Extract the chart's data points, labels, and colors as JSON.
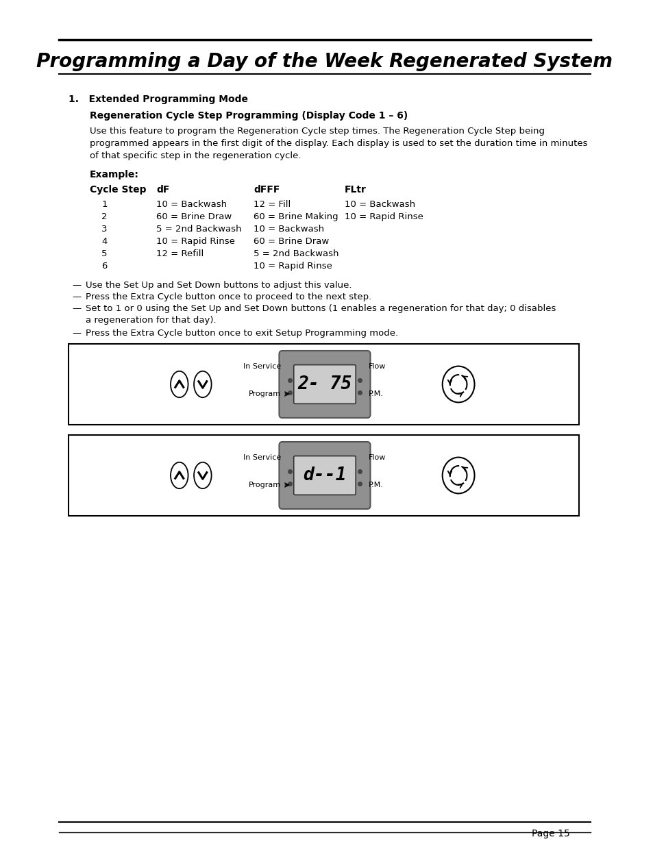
{
  "title": "Programming a Day of the Week Regenerated System",
  "bg_color": "#ffffff",
  "text_color": "#000000",
  "section1_heading": "1.   Extended Programming Mode",
  "subsection_heading": "Regeneration Cycle Step Programming (Display Code 1 – 6)",
  "intro_text": "Use this feature to program the Regeneration Cycle step times. The Regeneration Cycle Step being\nprogrammed appears in the first digit of the display. Each display is used to set the duration time in minutes\nof that specific step in the regeneration cycle.",
  "example_label": "Example:",
  "table_headers": [
    "Cycle Step",
    "dF",
    "dFFF",
    "FLtr"
  ],
  "table_col1": [
    "1",
    "2",
    "3",
    "4",
    "5",
    "6"
  ],
  "table_col2": [
    "10 = Backwash",
    "60 = Brine Draw",
    "5 = 2nd Backwash",
    "10 = Rapid Rinse",
    "12 = Refill",
    ""
  ],
  "table_col3": [
    "12 = Fill",
    "60 = Brine Making",
    "10 = Backwash",
    "60 = Brine Draw",
    "5 = 2nd Backwash",
    "10 = Rapid Rinse"
  ],
  "table_col4": [
    "10 = Backwash",
    "10 = Rapid Rinse",
    "",
    "",
    "",
    ""
  ],
  "bullets": [
    "Use the Set Up and Set Down buttons to adjust this value.",
    "Press the Extra Cycle button once to proceed to the next step.",
    "Set to 1 or 0 using the Set Up and Set Down buttons (1 enables a regeneration for that day; 0 disables\na regeneration for that day).",
    "Press the Extra Cycle button once to exit Setup Programming mode."
  ],
  "display1_text": "2- 75",
  "display2_text": "d--1",
  "page_number": "Page 15"
}
